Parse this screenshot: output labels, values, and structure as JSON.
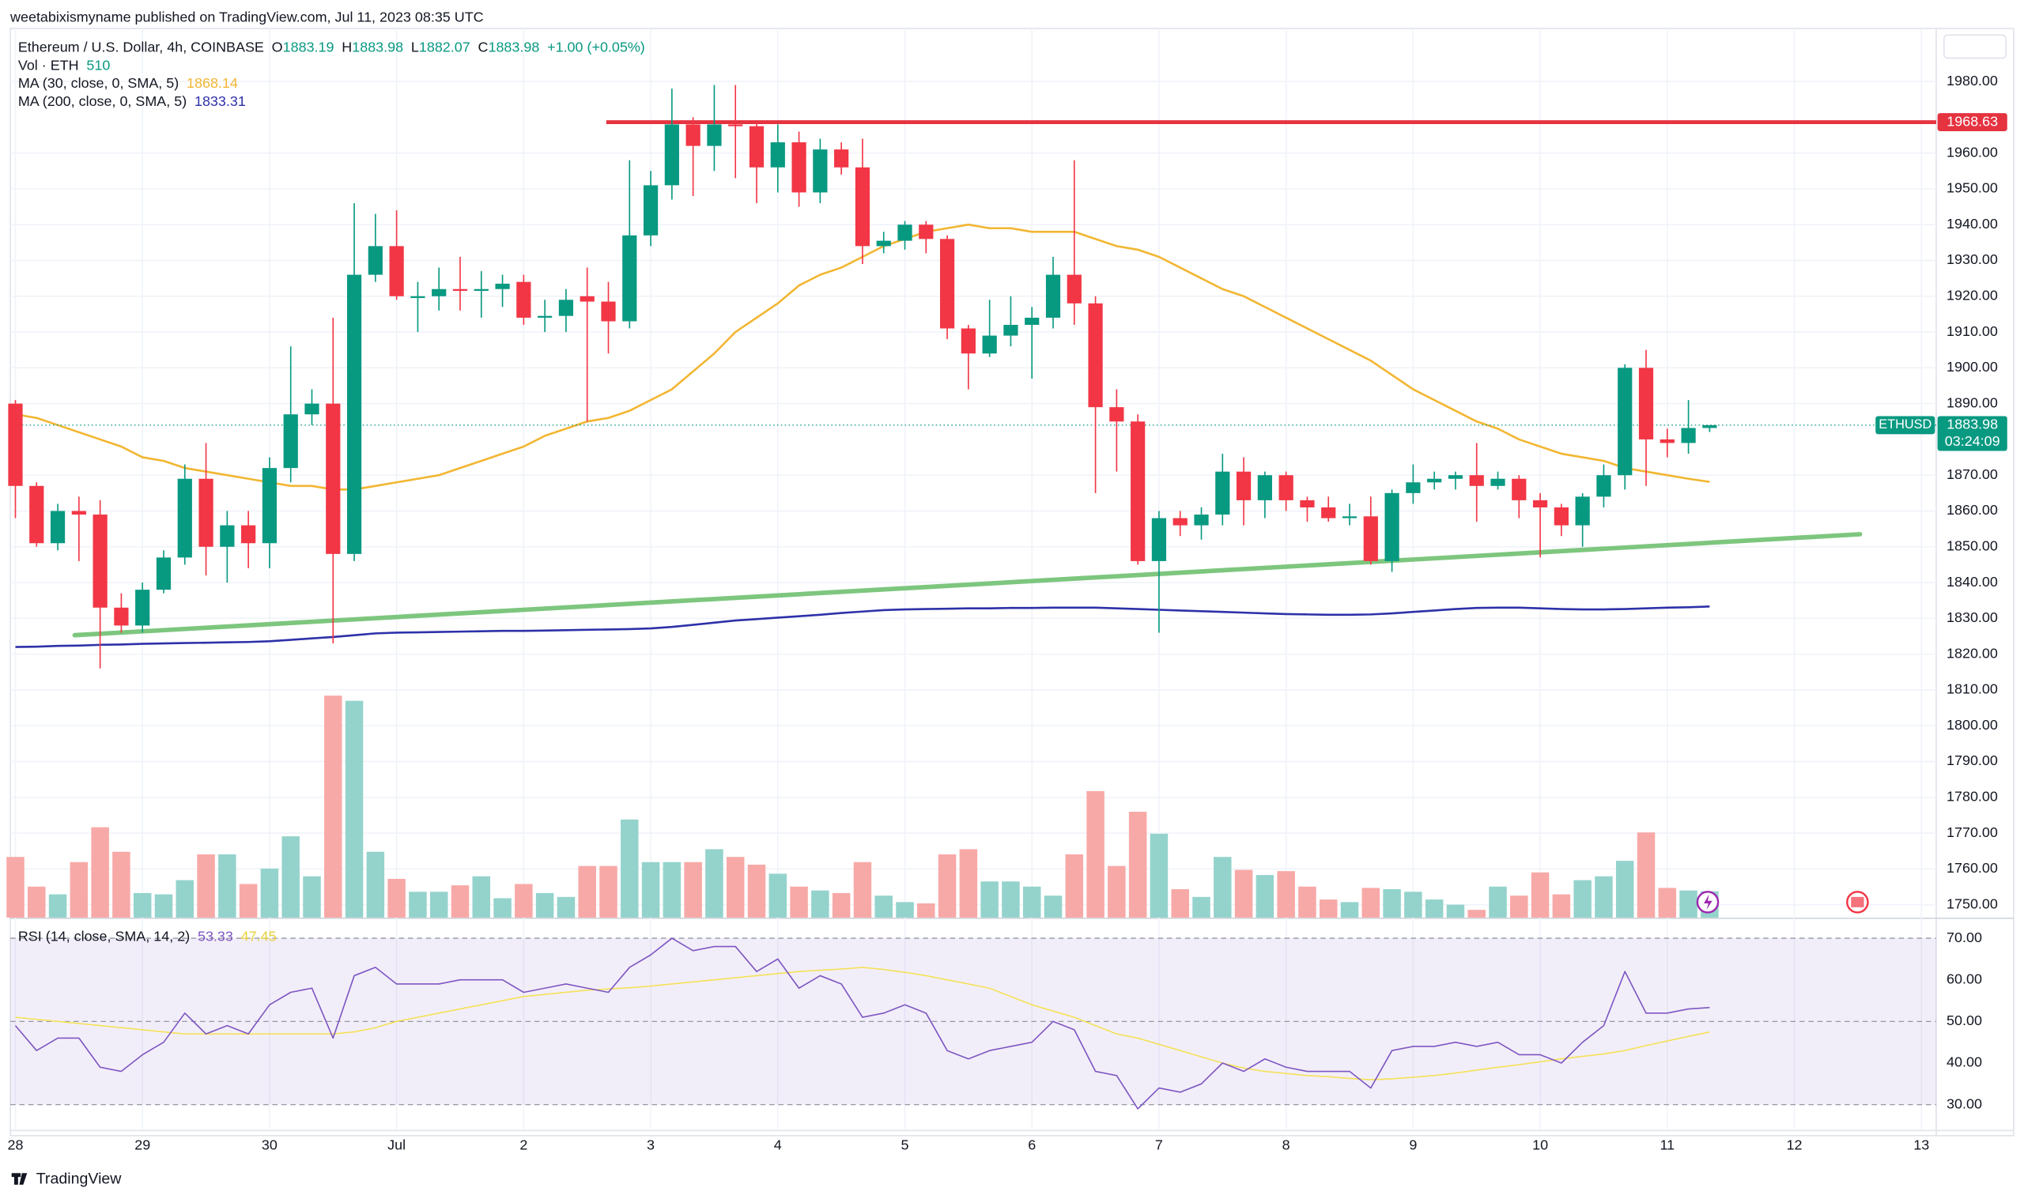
{
  "chart_data": {
    "type": "candlestick",
    "published": "weetabixismyname published on TradingView.com, Jul 11, 2023 08:35 UTC",
    "title": "Ethereum / U.S. Dollar, 4h, COINBASE",
    "ohlc_labels": [
      "O",
      "H",
      "L",
      "C"
    ],
    "change": "+1.00 (+0.05%)",
    "volume_label": "Vol · ETH",
    "symbol": "ETHUSD",
    "countdown": "03:24:09",
    "brand": "TradingView",
    "up_color": "#089981",
    "down_color": "#f23645",
    "up_volume_color": "#94d3cc",
    "down_volume_color": "#f7a9a7",
    "xlim": [
      -0.24,
      90.7
    ],
    "ylim": [
      1746.4,
      1994.8
    ],
    "volume_lim": [
      0,
      17225
    ],
    "grid": true,
    "xticks": [
      {
        "value": 0,
        "label": "28"
      },
      {
        "value": 6,
        "label": "29"
      },
      {
        "value": 12,
        "label": "30"
      },
      {
        "value": 18,
        "label": "Jul"
      },
      {
        "value": 24,
        "label": "2"
      },
      {
        "value": 30,
        "label": "3"
      },
      {
        "value": 36,
        "label": "4"
      },
      {
        "value": 42,
        "label": "5"
      },
      {
        "value": 48,
        "label": "6"
      },
      {
        "value": 54,
        "label": "7"
      },
      {
        "value": 60,
        "label": "8"
      },
      {
        "value": 66,
        "label": "9"
      },
      {
        "value": 72,
        "label": "10"
      },
      {
        "value": 78,
        "label": "11"
      },
      {
        "value": 84,
        "label": "12"
      },
      {
        "value": 90,
        "label": "13"
      }
    ],
    "yticks": [
      {
        "value": 1980,
        "label": "1980.00"
      },
      {
        "value": 1960,
        "label": "1960.00"
      },
      {
        "value": 1950,
        "label": "1950.00"
      },
      {
        "value": 1940,
        "label": "1940.00"
      },
      {
        "value": 1930,
        "label": "1930.00"
      },
      {
        "value": 1920,
        "label": "1920.00"
      },
      {
        "value": 1910,
        "label": "1910.00"
      },
      {
        "value": 1900,
        "label": "1900.00"
      },
      {
        "value": 1890,
        "label": "1890.00"
      },
      {
        "value": 1870,
        "label": "1870.00"
      },
      {
        "value": 1860,
        "label": "1860.00"
      },
      {
        "value": 1850,
        "label": "1850.00"
      },
      {
        "value": 1840,
        "label": "1840.00"
      },
      {
        "value": 1830,
        "label": "1830.00"
      },
      {
        "value": 1820,
        "label": "1820.00"
      },
      {
        "value": 1810,
        "label": "1810.00"
      },
      {
        "value": 1800,
        "label": "1800.00"
      },
      {
        "value": 1790,
        "label": "1790.00"
      },
      {
        "value": 1780,
        "label": "1780.00"
      },
      {
        "value": 1770,
        "label": "1770.00"
      },
      {
        "value": 1760,
        "label": "1760.00"
      },
      {
        "value": 1750,
        "label": "1750.00"
      }
    ],
    "open": [
      1890,
      1867,
      1851,
      1860,
      1859,
      1833,
      1828,
      1838,
      1847,
      1869,
      1850,
      1856,
      1851,
      1872,
      1887,
      1890,
      1848,
      1926,
      1934,
      1919.5,
      1920,
      1922,
      1921.5,
      1922,
      1924,
      1914,
      1914.5,
      1920,
      1918.5,
      1913,
      1937,
      1951,
      1968,
      1962,
      1968,
      1967.5,
      1956,
      1963,
      1949,
      1961,
      1956,
      1934,
      1935.5,
      1940,
      1936,
      1911,
      1904,
      1909,
      1912,
      1914,
      1926,
      1918,
      1889,
      1885,
      1846,
      1858,
      1856,
      1859,
      1871,
      1863,
      1870,
      1863,
      1861,
      1858,
      1858.5,
      1846,
      1865,
      1868,
      1869,
      1870,
      1867,
      1869,
      1863,
      1861,
      1856,
      1864,
      1870,
      1900,
      1880,
      1879,
      1883.19
    ],
    "high": [
      1891,
      1868,
      1862,
      1864,
      1863,
      1837,
      1840,
      1849,
      1873,
      1879,
      1860,
      1860,
      1875,
      1906,
      1894,
      1914,
      1946,
      1943,
      1944,
      1924,
      1928,
      1931,
      1927,
      1926,
      1926,
      1919,
      1922,
      1928,
      1924,
      1958,
      1955,
      1978,
      1970,
      1979,
      1979,
      1969,
      1968,
      1966,
      1964,
      1963,
      1964,
      1938,
      1941,
      1941,
      1937,
      1912,
      1919,
      1920,
      1917,
      1931,
      1958,
      1920,
      1894,
      1887,
      1860,
      1860,
      1861,
      1876,
      1875,
      1871,
      1871,
      1864,
      1864,
      1862,
      1864,
      1866,
      1873,
      1871,
      1871,
      1879,
      1871,
      1870,
      1865,
      1862,
      1865,
      1873,
      1901,
      1905,
      1883,
      1891,
      1883.98
    ],
    "low": [
      1858,
      1850,
      1849,
      1846,
      1816,
      1826,
      1826,
      1837,
      1845,
      1842,
      1840,
      1844,
      1844,
      1868,
      1884,
      1823,
      1846,
      1924,
      1919,
      1910,
      1916,
      1916,
      1914,
      1917,
      1912,
      1910,
      1910,
      1885,
      1904,
      1911,
      1934,
      1947,
      1948,
      1955,
      1953,
      1946,
      1949,
      1945,
      1946,
      1954,
      1929,
      1932,
      1933,
      1932,
      1908,
      1894,
      1903,
      1906,
      1897,
      1911,
      1912,
      1865,
      1871,
      1845,
      1826,
      1853,
      1852,
      1856,
      1856,
      1858,
      1860,
      1857,
      1857,
      1856,
      1845,
      1843,
      1862,
      1866,
      1866,
      1857,
      1866,
      1858,
      1847,
      1853,
      1850,
      1861,
      1866,
      1867,
      1875,
      1876,
      1882.07
    ],
    "close": [
      1867,
      1851,
      1860,
      1859,
      1833,
      1828,
      1838,
      1847,
      1869,
      1850,
      1856,
      1851,
      1872,
      1887,
      1890,
      1848,
      1926,
      1934,
      1920,
      1920,
      1922,
      1921.5,
      1922,
      1923.5,
      1914,
      1914.5,
      1919,
      1918.5,
      1913,
      1937,
      1951,
      1968,
      1962,
      1968,
      1967.5,
      1956,
      1963,
      1949,
      1961,
      1956,
      1934,
      1935.5,
      1940,
      1936,
      1911,
      1904,
      1909,
      1912,
      1914,
      1926,
      1918,
      1889,
      1885,
      1846,
      1858,
      1856,
      1859,
      1871,
      1863,
      1870,
      1863,
      1861,
      1858,
      1858.5,
      1846,
      1865,
      1868,
      1869,
      1870,
      1867,
      1869,
      1863,
      1861,
      1856,
      1864,
      1870,
      1900,
      1880,
      1879,
      1883.19,
      1883.98
    ],
    "volume": [
      1175,
      600,
      450,
      1075,
      1750,
      1275,
      475,
      450,
      725,
      1225,
      1225,
      650,
      950,
      1575,
      800,
      4300,
      4200,
      1275,
      750,
      500,
      500,
      625,
      800,
      375,
      650,
      475,
      400,
      1000,
      1000,
      1900,
      1075,
      1075,
      1075,
      1325,
      1175,
      1025,
      850,
      600,
      525,
      475,
      1075,
      425,
      300,
      275,
      1225,
      1325,
      700,
      700,
      600,
      425,
      1225,
      2450,
      1000,
      2050,
      1625,
      550,
      400,
      1175,
      925,
      825,
      900,
      600,
      350,
      300,
      575,
      550,
      500,
      350,
      250,
      150,
      600,
      425,
      875,
      450,
      725,
      800,
      1100,
      1650,
      575,
      525,
      510
    ],
    "ma30": {
      "name": "MA (30, close, 0, SMA, 5)",
      "color": "#f2b632",
      "values": [
        1887,
        1886,
        1884,
        1882,
        1880,
        1878,
        1875,
        1874,
        1872,
        1871,
        1870,
        1869,
        1868,
        1867,
        1867,
        1866,
        1866,
        1867,
        1868,
        1869,
        1870,
        1872,
        1874,
        1876,
        1878,
        1881,
        1883,
        1885,
        1886,
        1888,
        1891,
        1894,
        1899,
        1904,
        1910,
        1914,
        1918,
        1923,
        1926,
        1928,
        1931,
        1934,
        1936,
        1938,
        1939,
        1940,
        1939,
        1939,
        1938,
        1938,
        1938,
        1936,
        1934,
        1933,
        1931,
        1928,
        1925,
        1922,
        1920,
        1917,
        1914,
        1911,
        1908,
        1905,
        1902,
        1898,
        1894,
        1891,
        1888,
        1885,
        1883,
        1880,
        1878,
        1876,
        1875,
        1874,
        1872,
        1871,
        1870,
        1869,
        1868.14
      ]
    },
    "ma200": {
      "name": "MA (200, close, 0, SMA, 5)",
      "color": "#2e31a8",
      "values": [
        1822,
        1822.1,
        1822.3,
        1822.4,
        1822.6,
        1822.7,
        1822.9,
        1823,
        1823.1,
        1823.2,
        1823.3,
        1823.4,
        1823.6,
        1824,
        1824.4,
        1824.8,
        1825.3,
        1825.8,
        1826,
        1826.1,
        1826.2,
        1826.3,
        1826.4,
        1826.5,
        1826.5,
        1826.6,
        1826.7,
        1826.8,
        1826.9,
        1827,
        1827.2,
        1827.6,
        1828.2,
        1828.8,
        1829.4,
        1829.8,
        1830.2,
        1830.6,
        1831,
        1831.5,
        1831.9,
        1832.3,
        1832.5,
        1832.6,
        1832.7,
        1832.8,
        1832.8,
        1832.9,
        1832.9,
        1833,
        1833,
        1833,
        1832.8,
        1832.6,
        1832.4,
        1832.2,
        1832,
        1831.8,
        1831.6,
        1831.4,
        1831.2,
        1831.1,
        1831,
        1831,
        1831.1,
        1831.4,
        1831.8,
        1832.2,
        1832.6,
        1832.9,
        1833,
        1833,
        1832.8,
        1832.6,
        1832.5,
        1832.5,
        1832.6,
        1832.8,
        1833,
        1833.1,
        1833.31
      ]
    },
    "resistance": {
      "value": 1968.63,
      "x_start": 27.9,
      "color": "#e53340"
    },
    "support": {
      "x": [
        2.8,
        87.1
      ],
      "values": [
        1825.3,
        1853.5
      ],
      "color": "#7dc67e"
    },
    "rsi": {
      "name": "RSI (14, close, SMA, 14, 2)",
      "color": "#7e57c2",
      "ma_color": "#f5e15a",
      "ma_label_color": "#e8cf3a",
      "lim": [
        24.1,
        74.65
      ],
      "yticks": [
        {
          "value": 70,
          "label": "70.00"
        },
        {
          "value": 60,
          "label": "60.00"
        },
        {
          "value": 50,
          "label": "50.00"
        },
        {
          "value": 40,
          "label": "40.00"
        },
        {
          "value": 30,
          "label": "30.00"
        }
      ],
      "band": [
        30,
        70
      ],
      "levels": [
        70,
        50,
        30
      ],
      "values": [
        49,
        43,
        46,
        46,
        39,
        38,
        42,
        45,
        52,
        47,
        49,
        47,
        54,
        57,
        58,
        46,
        61,
        63,
        59,
        59,
        59,
        60,
        60,
        60,
        57,
        58,
        59,
        58,
        57,
        63,
        66,
        70,
        67,
        68,
        68,
        62,
        65,
        58,
        61,
        59,
        51,
        52,
        54,
        52,
        43,
        41,
        43,
        44,
        45,
        50,
        48,
        38,
        37,
        29,
        34,
        33,
        35,
        40,
        38,
        41,
        39,
        38,
        38,
        38,
        34,
        43,
        44,
        44,
        45,
        44,
        45,
        42,
        42,
        40,
        45,
        49,
        62,
        52,
        52,
        53,
        53.33
      ],
      "ma": [
        51,
        50.5,
        50,
        49.5,
        49,
        48.5,
        48,
        47.5,
        47,
        47,
        47,
        47,
        47,
        47,
        47,
        47,
        47.5,
        48.5,
        50,
        51,
        52,
        53,
        54,
        55,
        56,
        56.5,
        57,
        57.5,
        57.8,
        58.1,
        58.5,
        59,
        59.5,
        60,
        60.5,
        61,
        61.5,
        62,
        62.3,
        62.6,
        63,
        62.5,
        61.8,
        61,
        60,
        59,
        58,
        56,
        54,
        52.5,
        51,
        49,
        47,
        46,
        44.5,
        43,
        41.5,
        40,
        38.8,
        38,
        37.5,
        37,
        36.7,
        36.3,
        36,
        36.2,
        36.6,
        37,
        37.6,
        38.3,
        39,
        39.6,
        40.3,
        41,
        41.6,
        42.2,
        43,
        44.2,
        45.3,
        46.4,
        47.45
      ]
    }
  }
}
